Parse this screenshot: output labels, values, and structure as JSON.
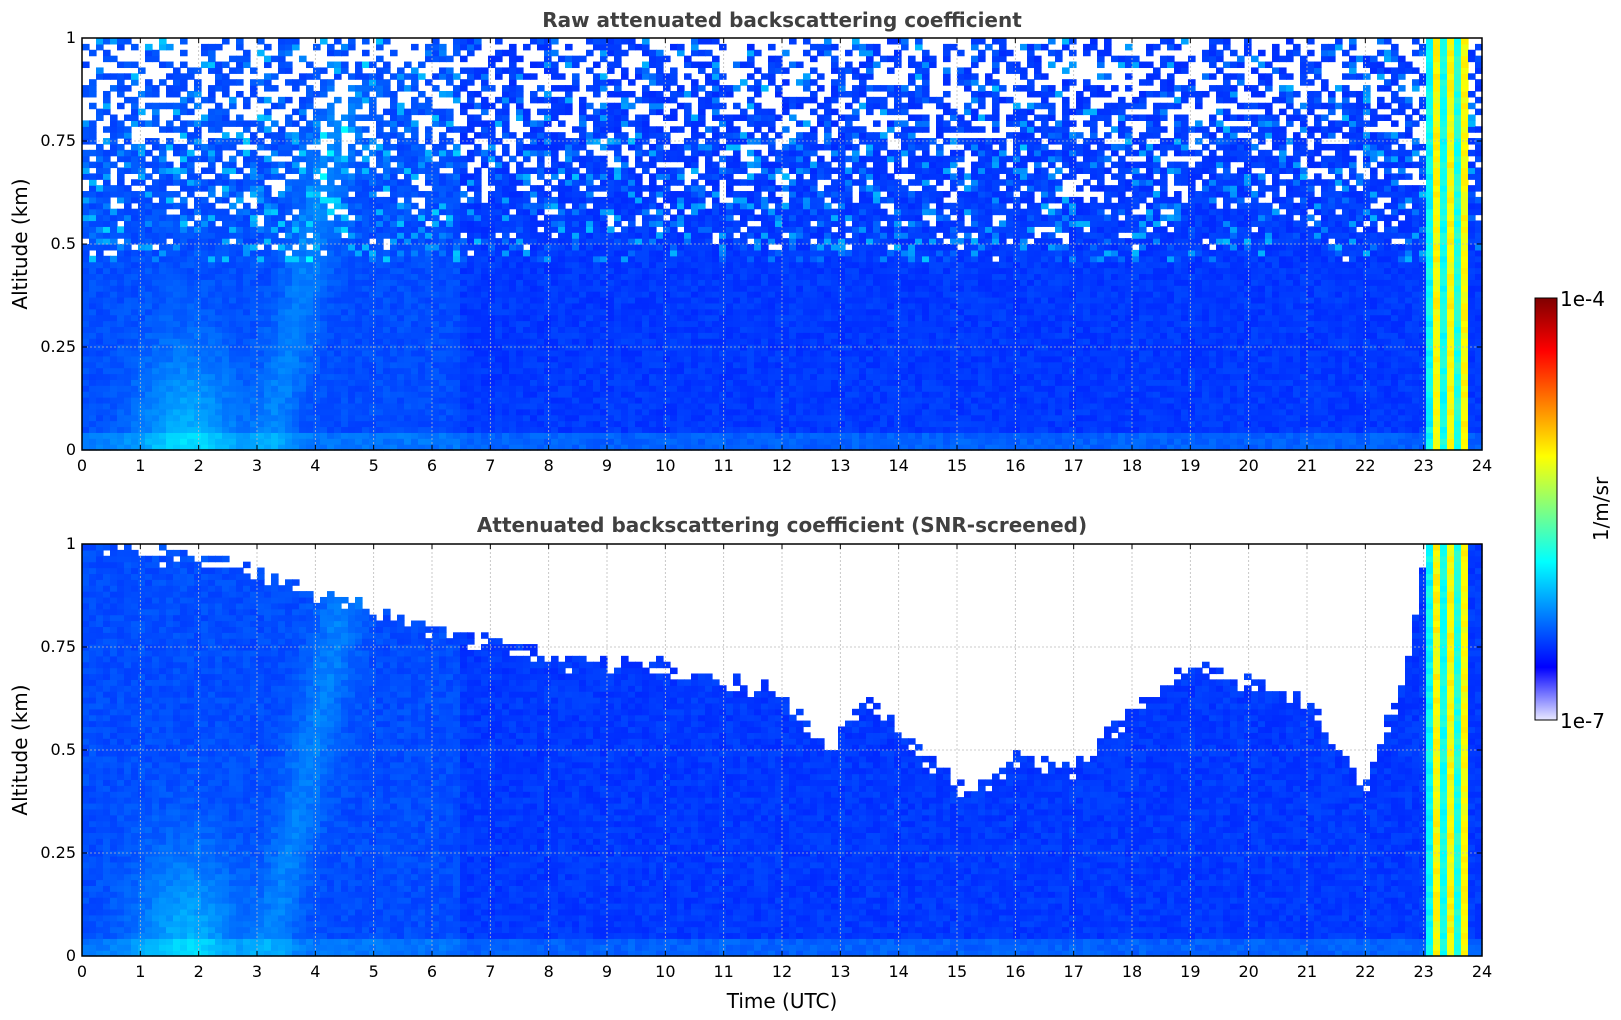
{
  "chart_data": [
    {
      "type": "heatmap",
      "title": "Raw attenuated backscattering coefficient",
      "xlabel": "",
      "ylabel": "Altitude (km)",
      "xlim": [
        0,
        24
      ],
      "ylim": [
        0,
        1
      ],
      "x_ticks": [
        "0",
        "1",
        "2",
        "3",
        "4",
        "5",
        "6",
        "7",
        "8",
        "9",
        "10",
        "11",
        "12",
        "13",
        "14",
        "15",
        "16",
        "17",
        "18",
        "19",
        "20",
        "21",
        "22",
        "23",
        "24"
      ],
      "y_ticks": [
        "0",
        "0.25",
        "0.5",
        "0.75",
        "1"
      ],
      "grid": true,
      "colormap": "jet",
      "color_scale": "log",
      "color_range": [
        1e-07,
        0.0001
      ],
      "features": [
        {
          "time_range": [
            23.1,
            23.8
          ],
          "value_level": "high",
          "altitude_range": [
            0,
            1
          ]
        },
        {
          "time_range": [
            1.0,
            2.5
          ],
          "value_level": "medium",
          "altitude_range": [
            0,
            0.3
          ]
        },
        {
          "time_range": [
            0,
            23.1
          ],
          "noise": "increasing with altitude above 0.5 km"
        }
      ]
    },
    {
      "type": "heatmap",
      "title": "Attenuated backscattering coefficient (SNR-screened)",
      "xlabel": "Time (UTC)",
      "ylabel": "Altitude (km)",
      "xlim": [
        0,
        24
      ],
      "ylim": [
        0,
        1
      ],
      "x_ticks": [
        "0",
        "1",
        "2",
        "3",
        "4",
        "5",
        "6",
        "7",
        "8",
        "9",
        "10",
        "11",
        "12",
        "13",
        "14",
        "15",
        "16",
        "17",
        "18",
        "19",
        "20",
        "21",
        "22",
        "23",
        "24"
      ],
      "y_ticks": [
        "0",
        "0.25",
        "0.5",
        "0.75",
        "1"
      ],
      "grid": true,
      "colormap": "jet",
      "color_scale": "log",
      "color_range": [
        1e-07,
        0.0001
      ],
      "valid_top_km": [
        [
          0,
          1.0
        ],
        [
          2.5,
          0.95
        ],
        [
          4,
          0.88
        ],
        [
          6,
          0.8
        ],
        [
          8,
          0.72
        ],
        [
          10,
          0.7
        ],
        [
          12,
          0.64
        ],
        [
          12.8,
          0.5
        ],
        [
          13.5,
          0.62
        ],
        [
          15.2,
          0.38
        ],
        [
          16,
          0.48
        ],
        [
          17,
          0.45
        ],
        [
          18,
          0.6
        ],
        [
          19,
          0.7
        ],
        [
          21,
          0.62
        ],
        [
          22,
          0.4
        ],
        [
          22.7,
          0.7
        ],
        [
          23,
          0.95
        ],
        [
          24,
          1.0
        ]
      ]
    }
  ],
  "colorbar": {
    "max_label": "1e-4",
    "min_label": "1e-7",
    "label": "1/m/sr",
    "stops": [
      "#800000",
      "#ff0000",
      "#ff8000",
      "#ffff00",
      "#80ff80",
      "#00ffff",
      "#0080ff",
      "#0000ff",
      "#e8e8ff"
    ]
  }
}
